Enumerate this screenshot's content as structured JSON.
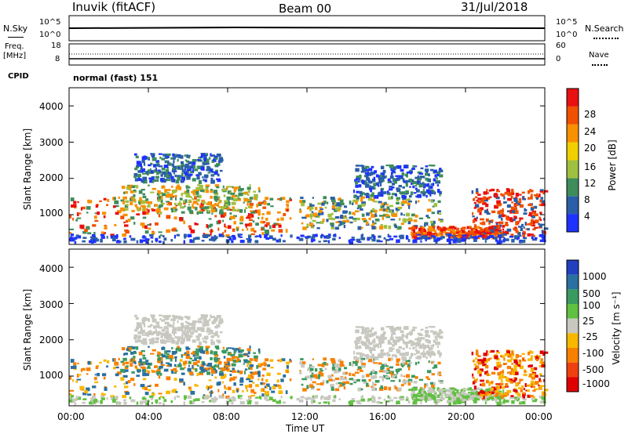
{
  "header": {
    "station": "Inuvik (fitACF)",
    "beam": "Beam 00",
    "date": "31/Jul/2018"
  },
  "noise_panel": {
    "left_label": "N.Sky",
    "left_ticks": [
      "10^5",
      "10^0"
    ],
    "right_ticks": [
      "10^5",
      "10^0"
    ],
    "right_label": "N.Search"
  },
  "freq_panel": {
    "left_label_1": "Freq.",
    "left_label_2": "[MHz]",
    "left_ticks": [
      "18",
      "8"
    ],
    "right_ticks": [
      "60",
      "0"
    ],
    "right_label": "Nave"
  },
  "cpid": {
    "label": "CPID",
    "value": "normal (fast) 151"
  },
  "chart_data": [
    {
      "type": "heatmap",
      "quantity": "Power",
      "ylabel": "Slant Range [km]",
      "ylim": [
        180,
        4500
      ],
      "yticks": [
        "1000",
        "2000",
        "3000",
        "4000"
      ],
      "xlabel": "",
      "colorbar_label": "Power [dB]",
      "colorbar_ticks": [
        "4",
        "8",
        "12",
        "16",
        "20",
        "24",
        "28"
      ],
      "colorbar_colors": [
        "#1e32ff",
        "#2a5ea8",
        "#3e8d5a",
        "#a0c040",
        "#f0d000",
        "#f89000",
        "#f05000",
        "#e81010"
      ]
    },
    {
      "type": "heatmap",
      "quantity": "Velocity",
      "ylabel": "Slant Range [km]",
      "ylim": [
        180,
        4500
      ],
      "yticks": [
        "1000",
        "2000",
        "3000",
        "4000"
      ],
      "xlabel": "Time UT",
      "xticks": [
        "00:00",
        "04:00",
        "08:00",
        "12:00",
        "16:00",
        "20:00",
        "00:00"
      ],
      "colorbar_label": "Velocity [m s⁻¹]",
      "colorbar_ticks": [
        "1000",
        "500",
        "100",
        "25",
        "-25",
        "-100",
        "-500",
        "-1000"
      ],
      "colorbar_colors": [
        "#2040c0",
        "#2a70a0",
        "#3a9a60",
        "#60c040",
        "#c8c8c0",
        "#f8b800",
        "#f88000",
        "#f04010",
        "#e00000"
      ]
    }
  ]
}
